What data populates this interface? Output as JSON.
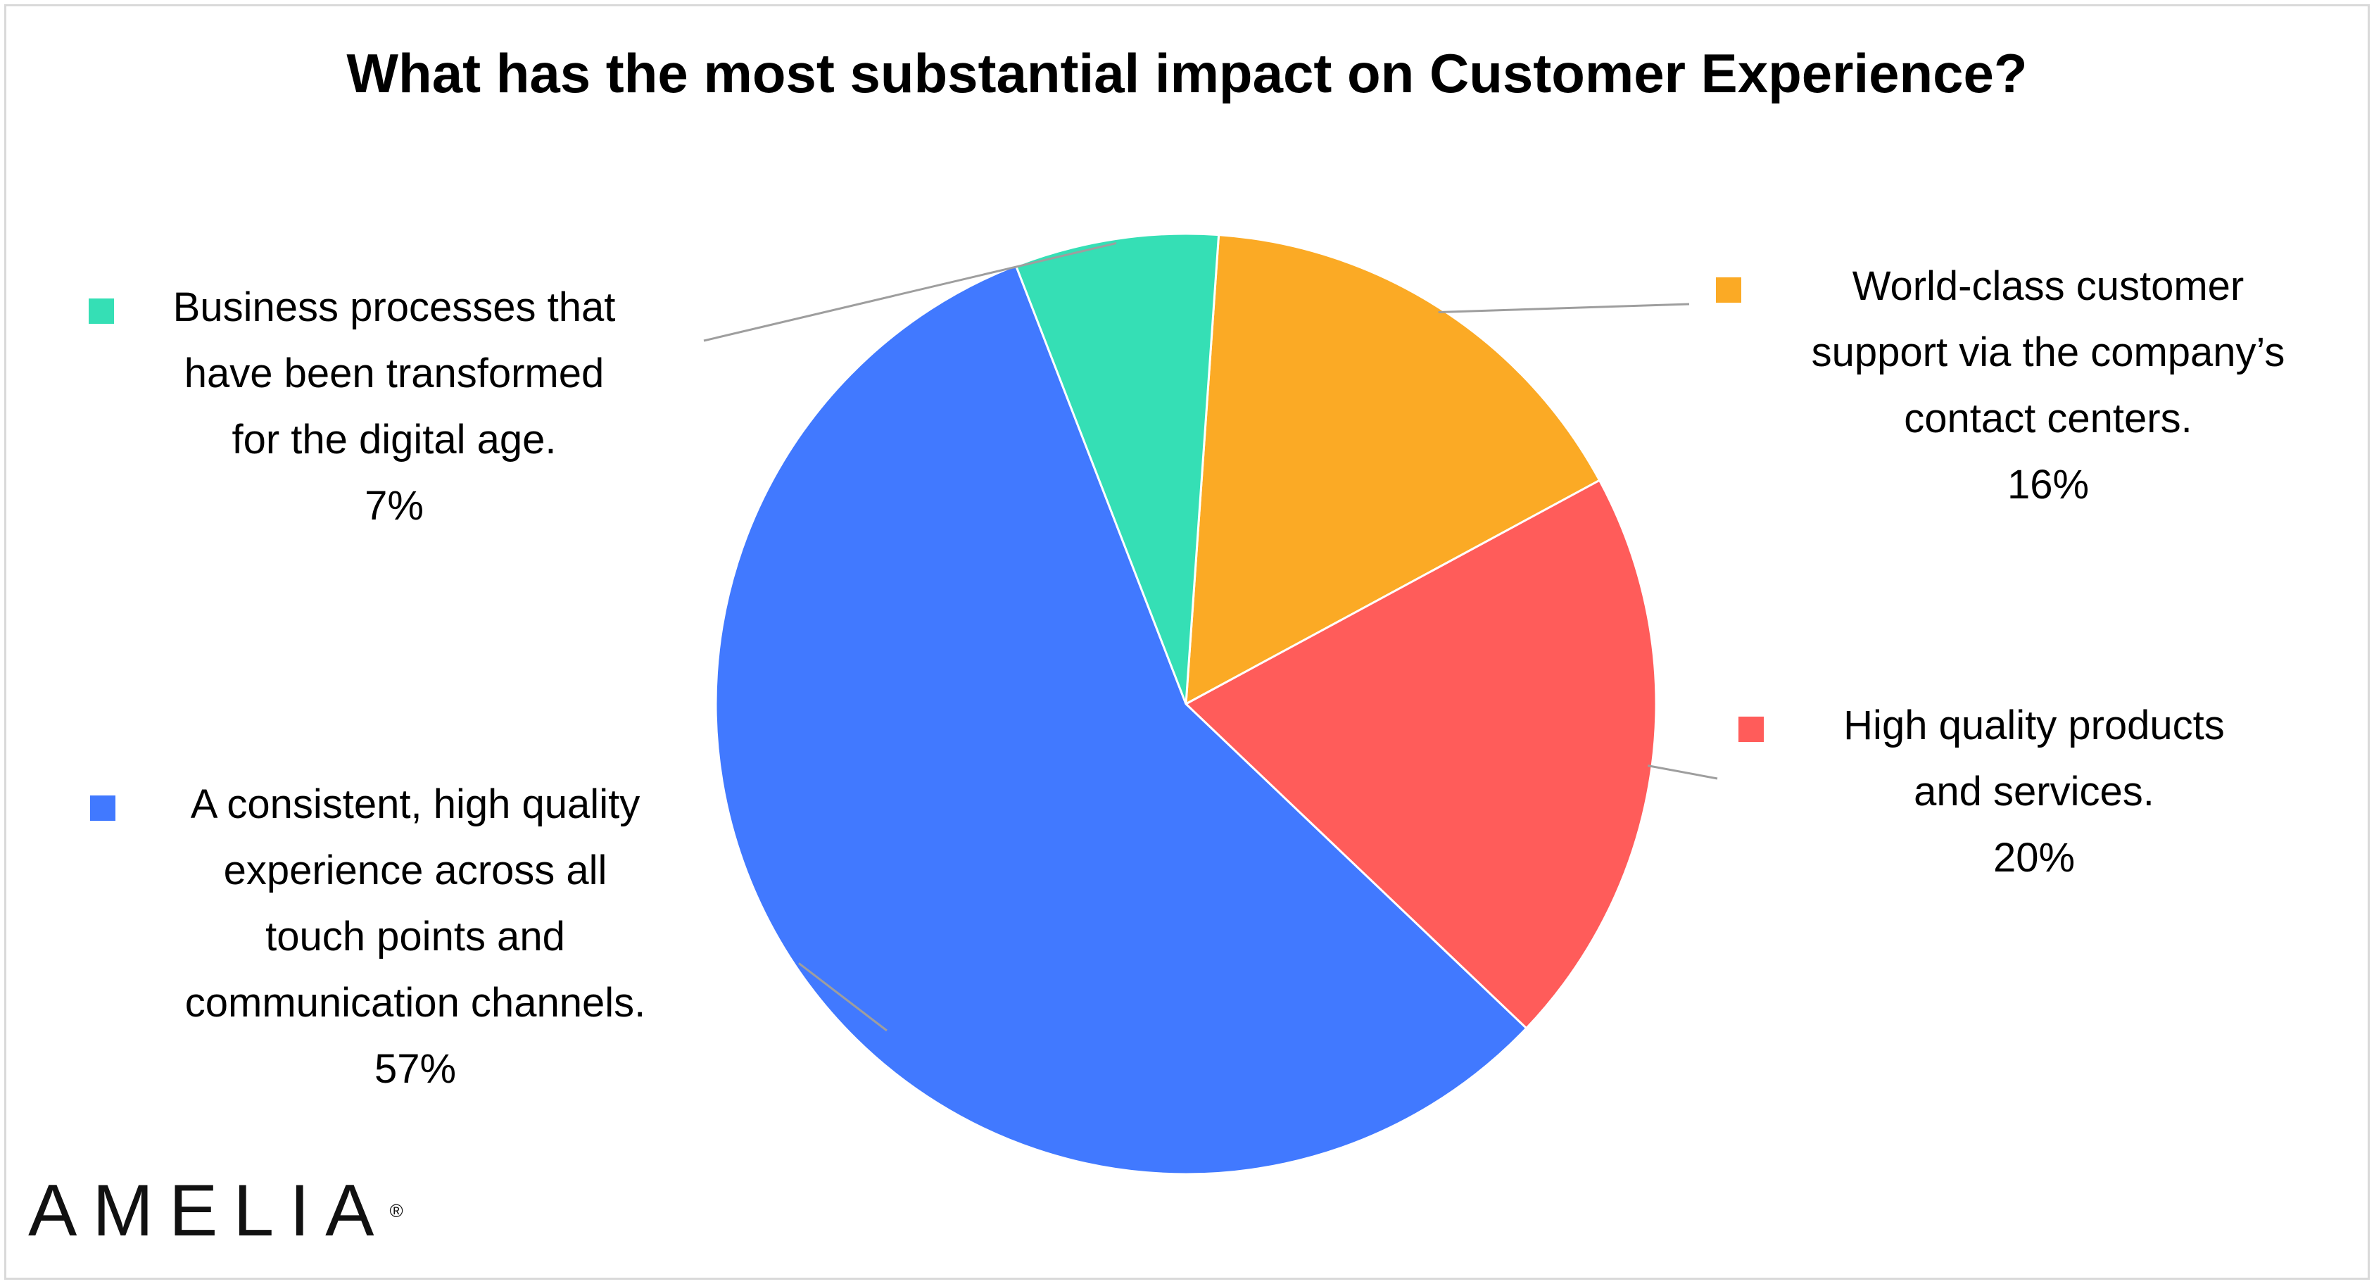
{
  "title": "What has the most substantial impact on Customer Experience?",
  "chart_data": {
    "type": "pie",
    "title": "What has the most substantial impact on Customer Experience?",
    "legend": "beside slices",
    "slices": [
      {
        "label": "World-class customer support via the company’s contact centers.",
        "value": 16,
        "display": "16%",
        "color": "#FBAA25"
      },
      {
        "label": "High quality products and services.",
        "value": 20,
        "display": "20%",
        "color": "#FF5C5A"
      },
      {
        "label": "A consistent, high quality experience across all touch points and communication channels.",
        "value": 57,
        "display": "57%",
        "color": "#4179FF"
      },
      {
        "label": "Business processes that have been transformed for the digital age.",
        "value": 7,
        "display": "7%",
        "color": "#35DFB5"
      }
    ]
  },
  "legend_text": {
    "support": "World-class customer\nsupport via the company’s\ncontact centers.",
    "products": "High quality products\nand services.",
    "experience": "A consistent, high quality\nexperience across all\ntouch points and\ncommunication channels.",
    "processes": "Business processes that\nhave been transformed\nfor the digital age."
  },
  "brand": {
    "name": "AMELIA",
    "mark": "®"
  }
}
